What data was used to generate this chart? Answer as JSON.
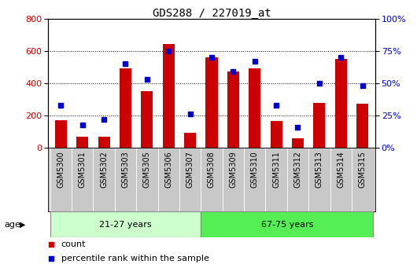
{
  "title": "GDS288 / 227019_at",
  "categories": [
    "GSM5300",
    "GSM5301",
    "GSM5302",
    "GSM5303",
    "GSM5305",
    "GSM5306",
    "GSM5307",
    "GSM5308",
    "GSM5309",
    "GSM5310",
    "GSM5311",
    "GSM5312",
    "GSM5313",
    "GSM5314",
    "GSM5315"
  ],
  "counts": [
    170,
    70,
    70,
    490,
    350,
    640,
    95,
    560,
    470,
    490,
    165,
    60,
    280,
    550,
    275
  ],
  "percentiles": [
    33,
    18,
    22,
    65,
    53,
    75,
    26,
    70,
    59,
    67,
    33,
    16,
    50,
    70,
    48
  ],
  "bar_color": "#cc0000",
  "dot_color": "#0000cc",
  "ylim_left": [
    0,
    800
  ],
  "ylim_right": [
    0,
    100
  ],
  "yticks_left": [
    0,
    200,
    400,
    600,
    800
  ],
  "yticks_right": [
    0,
    25,
    50,
    75,
    100
  ],
  "ytick_labels_right": [
    "0%",
    "25%",
    "50%",
    "75%",
    "100%"
  ],
  "group1_label": "21-27 years",
  "group2_label": "67-75 years",
  "age_label": "age",
  "legend_count": "count",
  "legend_percentile": "percentile rank within the sample",
  "xtick_bg_color": "#c8c8c8",
  "group1_color": "#ccffcc",
  "group2_color": "#55ee55",
  "bar_color_left": "#cc0000",
  "dot_color_right": "#0000cc",
  "title_fontsize": 10,
  "tick_fontsize": 7,
  "legend_fontsize": 8
}
